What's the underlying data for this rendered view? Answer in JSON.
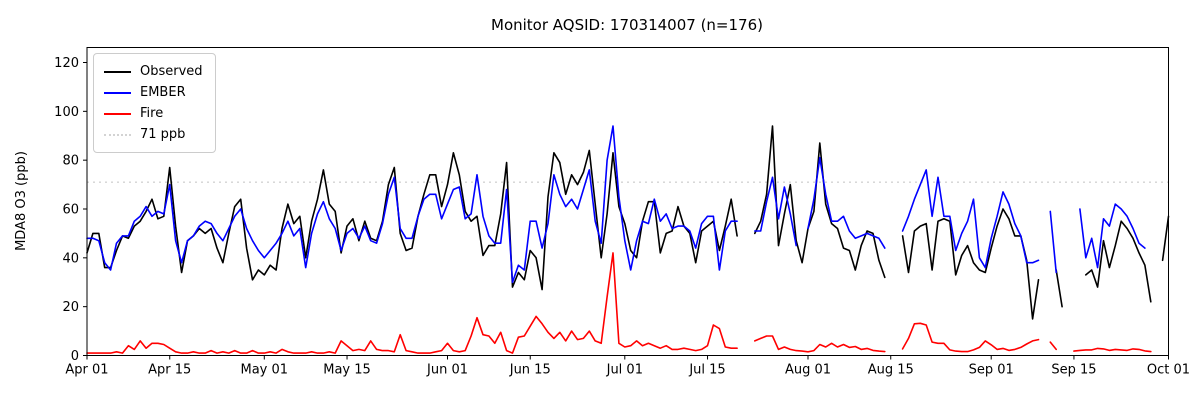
{
  "figure": {
    "title": "Monitor AQSID: 170314007 (n=176)",
    "ylabel": "MDA8 O3 (ppb)"
  },
  "legend": {
    "items": [
      {
        "label": "Observed",
        "color": "#000000",
        "style": "solid"
      },
      {
        "label": "EMBER",
        "color": "#0000ff",
        "style": "solid"
      },
      {
        "label": "Fire",
        "color": "#ff0000",
        "style": "solid"
      },
      {
        "label": "71 ppb",
        "color": "#d3d3d3",
        "style": "dotted"
      }
    ]
  },
  "chart_data": {
    "type": "line",
    "title": "Monitor AQSID: 170314007 (n=176)",
    "xlabel": "",
    "ylabel": "MDA8 O3 (ppb)",
    "ylim": [
      0,
      126
    ],
    "grid": false,
    "legend_position": "upper-left",
    "x_start_label": "Apr 01",
    "x_end_label": "Oct 01",
    "points_are_daily": true,
    "x_tick_labels": [
      "Apr 01",
      "Apr 15",
      "May 01",
      "May 15",
      "Jun 01",
      "Jun 15",
      "Jul 01",
      "Jul 15",
      "Aug 01",
      "Aug 15",
      "Sep 01",
      "Sep 15",
      "Oct 01"
    ],
    "x_tick_indices": [
      0,
      14,
      30,
      44,
      61,
      75,
      91,
      105,
      122,
      136,
      153,
      167,
      183
    ],
    "y_ticks": [
      0,
      20,
      40,
      60,
      80,
      100,
      120
    ],
    "threshold": {
      "label": "71 ppb",
      "value": 71,
      "color": "#d3d3d3",
      "style": "dotted"
    },
    "series": [
      {
        "name": "Observed",
        "color": "#000000",
        "values": [
          42,
          50,
          50,
          36,
          36,
          43,
          49,
          48,
          53,
          55,
          59,
          64,
          56,
          57,
          77,
          53,
          34,
          47,
          49,
          52,
          50,
          52,
          44,
          38,
          50,
          61,
          64,
          44,
          31,
          35,
          33,
          37,
          35,
          52,
          62,
          54,
          57,
          40,
          55,
          64,
          76,
          62,
          59,
          42,
          53,
          56,
          47,
          55,
          48,
          47,
          55,
          70,
          77,
          50,
          43,
          44,
          57,
          66,
          74,
          74,
          61,
          70,
          83,
          74,
          59,
          55,
          57,
          41,
          45,
          45,
          58,
          79,
          28,
          34,
          31,
          43,
          40,
          27,
          65,
          83,
          79,
          66,
          74,
          70,
          75,
          84,
          62,
          40,
          58,
          83,
          61,
          54,
          43,
          40,
          55,
          63,
          63,
          42,
          50,
          51,
          61,
          53,
          50,
          38,
          51,
          53,
          55,
          43,
          53,
          64,
          49,
          null,
          null,
          50,
          55,
          66,
          94,
          45,
          58,
          70,
          47,
          38,
          52,
          59,
          87,
          62,
          54,
          52,
          44,
          43,
          35,
          45,
          51,
          50,
          39,
          32,
          null,
          null,
          49,
          34,
          51,
          53,
          54,
          35,
          55,
          56,
          55,
          33,
          41,
          45,
          38,
          35,
          34,
          44,
          53,
          60,
          56,
          49,
          49,
          39,
          15,
          31,
          null,
          null,
          35,
          20,
          null,
          null,
          null,
          33,
          35,
          28,
          47,
          36,
          45,
          55,
          52,
          48,
          42,
          37,
          22,
          null,
          39,
          57
        ]
      },
      {
        "name": "EMBER",
        "color": "#0000ff",
        "values": [
          48,
          48,
          47,
          38,
          35,
          46,
          49,
          49,
          55,
          57,
          61,
          57,
          59,
          58,
          70,
          47,
          38,
          47,
          49,
          53,
          55,
          54,
          50,
          47,
          52,
          57,
          60,
          52,
          47,
          43,
          40,
          43,
          46,
          50,
          55,
          49,
          52,
          36,
          50,
          58,
          63,
          56,
          52,
          43,
          50,
          52,
          48,
          53,
          47,
          46,
          54,
          66,
          73,
          52,
          48,
          48,
          57,
          64,
          66,
          66,
          56,
          62,
          68,
          69,
          56,
          58,
          74,
          57,
          49,
          46,
          46,
          68,
          30,
          37,
          35,
          55,
          55,
          44,
          54,
          74,
          66,
          61,
          64,
          60,
          68,
          76,
          55,
          46,
          80,
          94,
          65,
          47,
          35,
          47,
          55,
          54,
          64,
          55,
          58,
          52,
          53,
          53,
          51,
          44,
          54,
          57,
          57,
          35,
          51,
          55,
          55,
          null,
          null,
          51,
          51,
          63,
          73,
          56,
          69,
          58,
          45,
          null,
          52,
          64,
          81,
          66,
          55,
          55,
          57,
          51,
          48,
          49,
          50,
          49,
          48,
          44,
          null,
          null,
          51,
          57,
          64,
          70,
          76,
          57,
          73,
          57,
          57,
          43,
          50,
          55,
          64,
          40,
          36,
          48,
          57,
          67,
          62,
          54,
          49,
          38,
          38,
          39,
          null,
          59,
          34,
          null,
          null,
          null,
          60,
          40,
          48,
          36,
          56,
          53,
          62,
          60,
          57,
          52,
          46,
          44,
          null,
          null,
          null,
          null
        ]
      },
      {
        "name": "Fire",
        "color": "#ff0000",
        "values": [
          1,
          1,
          1,
          1,
          1,
          1.5,
          1,
          4,
          2.5,
          6,
          3,
          5,
          5,
          4.5,
          3,
          1.5,
          1,
          1,
          1.5,
          1,
          1,
          2,
          1,
          1.5,
          1,
          2,
          1,
          1,
          2,
          1,
          1,
          1.5,
          1,
          2.5,
          1.5,
          1,
          1,
          1,
          1.5,
          1,
          1,
          1.5,
          1,
          6,
          4,
          2,
          2.5,
          2,
          6,
          2.5,
          2,
          2,
          1.5,
          8.5,
          2,
          1.5,
          1,
          1,
          1,
          1.5,
          2,
          5,
          2,
          1.5,
          2,
          8,
          15.5,
          8.5,
          8,
          5,
          9.5,
          2,
          1,
          7.5,
          8,
          12,
          16,
          13,
          9.5,
          7,
          9.5,
          6,
          10,
          6.5,
          7,
          10,
          6,
          5,
          24,
          42,
          5,
          3.5,
          4,
          6,
          4,
          5,
          4,
          3,
          4,
          2.5,
          2.5,
          3,
          2.5,
          2,
          2.5,
          4,
          12.5,
          11,
          3.5,
          3,
          3,
          null,
          null,
          6,
          7,
          8,
          8,
          2.5,
          3.5,
          2.5,
          2,
          1.8,
          1.5,
          2,
          4.5,
          3.5,
          5,
          3.5,
          4.5,
          3.3,
          3.7,
          2.5,
          2.9,
          2.1,
          1.8,
          1.6,
          null,
          null,
          2.7,
          7,
          13,
          13.2,
          12.5,
          5.5,
          5,
          5,
          2.3,
          1.8,
          1.6,
          1.6,
          2.3,
          3.3,
          6,
          4.4,
          2.5,
          2.9,
          2.1,
          2.5,
          3.3,
          4.7,
          6,
          6.5,
          null,
          5.5,
          2.5,
          null,
          null,
          1.8,
          2.1,
          2.3,
          2.3,
          2.9,
          2.7,
          2.1,
          2.5,
          2.3,
          2.1,
          2.7,
          2.5,
          1.9,
          1.6,
          null,
          null,
          null
        ]
      }
    ]
  }
}
